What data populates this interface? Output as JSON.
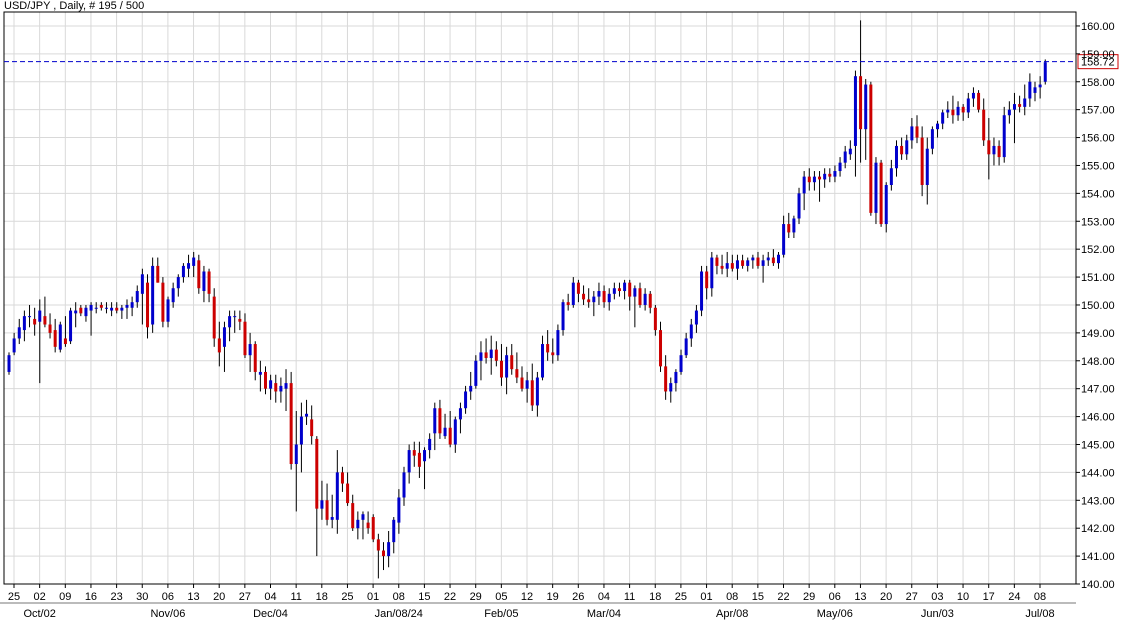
{
  "chart_data": {
    "type": "candlestick",
    "title": "USD/JPY , Daily, # 195 / 500",
    "instrument": "USD/JPY",
    "timeframe": "Daily",
    "ylim": [
      140.0,
      160.5
    ],
    "grid": true,
    "yticks": [
      "140.00",
      "141.00",
      "142.00",
      "143.00",
      "144.00",
      "145.00",
      "146.00",
      "147.00",
      "148.00",
      "149.00",
      "150.00",
      "151.00",
      "152.00",
      "153.00",
      "154.00",
      "155.00",
      "156.00",
      "157.00",
      "158.00",
      "159.00",
      "160.00"
    ],
    "xticks_day": [
      "25",
      "02",
      "09",
      "16",
      "23",
      "30",
      "06",
      "13",
      "20",
      "27",
      "04",
      "11",
      "18",
      "25",
      "01",
      "08",
      "15",
      "22",
      "29",
      "05",
      "12",
      "19",
      "26",
      "04",
      "11",
      "18",
      "25",
      "01",
      "08",
      "15",
      "22",
      "29",
      "06",
      "13",
      "20",
      "27",
      "03",
      "10",
      "17",
      "24",
      "08"
    ],
    "xticks_month": [
      {
        "label": "Oct/02",
        "at_tick": 1
      },
      {
        "label": "Nov/06",
        "at_tick": 6
      },
      {
        "label": "Dec/04",
        "at_tick": 10
      },
      {
        "label": "Jan/08/24",
        "at_tick": 15
      },
      {
        "label": "Feb/05",
        "at_tick": 19
      },
      {
        "label": "Mar/04",
        "at_tick": 23
      },
      {
        "label": "Apr/08",
        "at_tick": 28
      },
      {
        "label": "May/06",
        "at_tick": 32
      },
      {
        "label": "Jun/03",
        "at_tick": 36
      },
      {
        "label": "Jul/08",
        "at_tick": 40
      }
    ],
    "last_price": "158.72",
    "last_price_value": 158.72,
    "colors": {
      "up": "#0000cc",
      "down": "#cc0000",
      "wick": "#000000",
      "grid": "#d9d9d9",
      "price_line": "#0000cc",
      "price_box_border": "#cc0000",
      "background": "#ffffff",
      "separator": "#777777"
    },
    "candles": [
      [
        147.6,
        148.3,
        147.5,
        148.2
      ],
      [
        148.3,
        149.0,
        148.2,
        148.8
      ],
      [
        148.8,
        149.5,
        148.6,
        149.2
      ],
      [
        149.1,
        149.8,
        148.7,
        149.6
      ],
      [
        149.6,
        150.0,
        149.2,
        149.6
      ],
      [
        149.5,
        149.9,
        148.9,
        149.3
      ],
      [
        149.4,
        150.2,
        147.2,
        149.8
      ],
      [
        149.6,
        150.3,
        149.2,
        149.3
      ],
      [
        149.3,
        149.7,
        148.8,
        149.0
      ],
      [
        149.1,
        149.5,
        148.3,
        148.5
      ],
      [
        148.4,
        149.4,
        148.3,
        149.3
      ],
      [
        148.8,
        149.6,
        148.5,
        148.6
      ],
      [
        148.7,
        149.9,
        148.6,
        149.8
      ],
      [
        149.7,
        150.1,
        149.2,
        149.8
      ],
      [
        149.9,
        150.0,
        149.6,
        149.7
      ],
      [
        149.6,
        150.0,
        149.4,
        149.9
      ],
      [
        149.8,
        150.1,
        148.9,
        150.0
      ],
      [
        149.9,
        150.1,
        149.7,
        149.9
      ],
      [
        150.0,
        150.1,
        149.8,
        149.9
      ],
      [
        149.9,
        150.1,
        149.7,
        149.9
      ],
      [
        149.8,
        150.1,
        149.6,
        149.9
      ],
      [
        149.9,
        150.1,
        149.7,
        149.8
      ],
      [
        149.8,
        150.0,
        149.5,
        149.9
      ],
      [
        149.9,
        150.2,
        149.5,
        150.0
      ],
      [
        149.9,
        150.3,
        149.6,
        150.1
      ],
      [
        150.1,
        150.7,
        149.9,
        150.5
      ],
      [
        150.4,
        151.3,
        149.3,
        151.1
      ],
      [
        150.8,
        151.1,
        148.8,
        149.2
      ],
      [
        149.3,
        151.7,
        149.0,
        151.4
      ],
      [
        151.4,
        151.7,
        150.8,
        150.8
      ],
      [
        150.8,
        151.0,
        149.2,
        149.4
      ],
      [
        149.4,
        150.3,
        149.2,
        150.2
      ],
      [
        150.1,
        150.8,
        149.9,
        150.6
      ],
      [
        150.6,
        151.1,
        150.3,
        151.0
      ],
      [
        151.0,
        151.5,
        150.8,
        151.4
      ],
      [
        151.3,
        151.8,
        151.0,
        151.5
      ],
      [
        151.4,
        151.9,
        151.0,
        151.7
      ],
      [
        151.6,
        151.8,
        150.4,
        150.6
      ],
      [
        150.5,
        151.4,
        150.1,
        151.2
      ],
      [
        151.2,
        151.3,
        150.1,
        150.4
      ],
      [
        150.3,
        150.6,
        148.5,
        148.8
      ],
      [
        148.8,
        149.4,
        147.8,
        148.3
      ],
      [
        148.5,
        149.4,
        147.6,
        149.2
      ],
      [
        149.2,
        149.8,
        148.7,
        149.6
      ],
      [
        149.6,
        149.8,
        149.0,
        149.6
      ],
      [
        149.5,
        149.8,
        149.1,
        149.4
      ],
      [
        149.4,
        149.7,
        148.1,
        148.2
      ],
      [
        148.2,
        149.0,
        147.6,
        148.6
      ],
      [
        148.6,
        148.7,
        147.3,
        147.6
      ],
      [
        147.5,
        148.0,
        146.9,
        147.6
      ],
      [
        147.6,
        147.8,
        146.8,
        147.0
      ],
      [
        147.0,
        147.5,
        146.6,
        147.3
      ],
      [
        147.2,
        147.5,
        146.5,
        146.9
      ],
      [
        146.9,
        147.4,
        146.5,
        147.1
      ],
      [
        147.0,
        147.7,
        146.2,
        147.2
      ],
      [
        147.2,
        147.6,
        144.1,
        144.3
      ],
      [
        144.3,
        146.2,
        142.6,
        145.0
      ],
      [
        145.0,
        146.5,
        144.0,
        146.0
      ],
      [
        146.0,
        146.6,
        145.7,
        146.1
      ],
      [
        145.9,
        146.4,
        145.0,
        145.3
      ],
      [
        145.2,
        145.3,
        141.0,
        142.7
      ],
      [
        142.7,
        143.7,
        142.3,
        143.0
      ],
      [
        143.0,
        143.6,
        142.1,
        142.3
      ],
      [
        142.3,
        143.2,
        142.0,
        142.4
      ],
      [
        142.3,
        144.8,
        141.8,
        144.0
      ],
      [
        144.0,
        144.2,
        143.3,
        143.6
      ],
      [
        143.6,
        144.0,
        142.8,
        142.9
      ],
      [
        142.9,
        143.2,
        141.9,
        142.0
      ],
      [
        142.0,
        142.6,
        141.6,
        142.3
      ],
      [
        142.3,
        142.6,
        141.6,
        142.5
      ],
      [
        142.2,
        142.6,
        141.8,
        142.0
      ],
      [
        142.4,
        142.5,
        141.5,
        141.6
      ],
      [
        141.6,
        141.8,
        140.2,
        141.2
      ],
      [
        141.2,
        141.5,
        140.5,
        141.0
      ],
      [
        141.0,
        141.9,
        140.6,
        141.5
      ],
      [
        141.5,
        142.4,
        141.1,
        142.3
      ],
      [
        142.2,
        143.4,
        141.8,
        143.1
      ],
      [
        143.1,
        144.2,
        142.8,
        144.0
      ],
      [
        144.0,
        145.0,
        143.6,
        144.8
      ],
      [
        144.8,
        145.1,
        144.2,
        144.6
      ],
      [
        144.7,
        145.1,
        143.8,
        144.2
      ],
      [
        144.4,
        144.9,
        143.4,
        144.8
      ],
      [
        144.8,
        145.4,
        144.5,
        145.2
      ],
      [
        145.4,
        146.5,
        144.8,
        146.3
      ],
      [
        146.3,
        146.6,
        145.2,
        145.4
      ],
      [
        145.3,
        146.1,
        145.2,
        145.6
      ],
      [
        145.6,
        146.2,
        144.9,
        145.0
      ],
      [
        145.0,
        146.0,
        144.7,
        145.9
      ],
      [
        145.9,
        146.5,
        145.4,
        146.3
      ],
      [
        146.3,
        147.1,
        146.1,
        146.9
      ],
      [
        146.9,
        147.6,
        146.6,
        147.1
      ],
      [
        147.1,
        148.2,
        147.0,
        148.0
      ],
      [
        148.0,
        148.7,
        147.3,
        148.3
      ],
      [
        148.3,
        148.8,
        147.9,
        148.1
      ],
      [
        148.1,
        148.9,
        147.5,
        148.4
      ],
      [
        148.4,
        148.7,
        147.8,
        148.0
      ],
      [
        148.0,
        148.6,
        147.1,
        147.4
      ],
      [
        147.4,
        148.5,
        146.8,
        148.2
      ],
      [
        148.2,
        148.6,
        147.5,
        147.7
      ],
      [
        147.7,
        148.3,
        147.2,
        147.4
      ],
      [
        147.4,
        147.8,
        146.9,
        147.0
      ],
      [
        147.0,
        147.6,
        146.5,
        147.3
      ],
      [
        147.3,
        147.9,
        146.2,
        146.4
      ],
      [
        146.4,
        147.6,
        146.0,
        147.4
      ],
      [
        147.4,
        148.9,
        147.3,
        148.6
      ],
      [
        148.6,
        149.1,
        148.0,
        148.3
      ],
      [
        148.3,
        148.8,
        147.9,
        148.2
      ],
      [
        148.2,
        149.3,
        148.0,
        149.1
      ],
      [
        149.1,
        150.2,
        148.9,
        150.1
      ],
      [
        150.1,
        150.4,
        149.8,
        150.0
      ],
      [
        150.0,
        151.0,
        149.9,
        150.8
      ],
      [
        150.8,
        150.9,
        150.1,
        150.4
      ],
      [
        150.4,
        150.7,
        150.0,
        150.2
      ],
      [
        150.2,
        150.6,
        149.9,
        150.1
      ],
      [
        150.1,
        150.5,
        149.6,
        150.3
      ],
      [
        150.3,
        150.8,
        150.0,
        150.5
      ],
      [
        150.5,
        150.7,
        149.9,
        150.1
      ],
      [
        150.1,
        150.6,
        149.8,
        150.4
      ],
      [
        150.4,
        150.8,
        150.2,
        150.6
      ],
      [
        150.6,
        150.8,
        150.3,
        150.5
      ],
      [
        150.5,
        150.9,
        150.2,
        150.8
      ],
      [
        150.8,
        150.9,
        149.8,
        150.3
      ],
      [
        150.3,
        150.7,
        149.2,
        150.6
      ],
      [
        150.6,
        150.8,
        149.9,
        150.0
      ],
      [
        150.0,
        150.6,
        149.8,
        150.4
      ],
      [
        150.4,
        150.5,
        149.7,
        149.9
      ],
      [
        149.9,
        150.0,
        148.9,
        149.1
      ],
      [
        149.1,
        149.4,
        147.6,
        147.8
      ],
      [
        147.8,
        148.2,
        146.6,
        146.9
      ],
      [
        146.9,
        147.4,
        146.5,
        147.2
      ],
      [
        147.2,
        147.7,
        146.9,
        147.6
      ],
      [
        147.6,
        148.4,
        147.5,
        148.2
      ],
      [
        148.2,
        149.0,
        148.1,
        148.8
      ],
      [
        148.8,
        149.5,
        148.5,
        149.3
      ],
      [
        149.3,
        150.0,
        149.0,
        149.8
      ],
      [
        149.8,
        151.4,
        149.6,
        151.2
      ],
      [
        151.2,
        151.4,
        150.2,
        150.6
      ],
      [
        150.6,
        151.9,
        150.3,
        151.7
      ],
      [
        151.7,
        151.8,
        151.1,
        151.4
      ],
      [
        151.4,
        151.8,
        151.1,
        151.3
      ],
      [
        151.3,
        151.9,
        151.0,
        151.5
      ],
      [
        151.5,
        151.8,
        151.2,
        151.3
      ],
      [
        151.3,
        151.8,
        150.9,
        151.6
      ],
      [
        151.6,
        151.8,
        151.3,
        151.4
      ],
      [
        151.4,
        151.7,
        151.2,
        151.6
      ],
      [
        151.6,
        151.8,
        151.3,
        151.7
      ],
      [
        151.7,
        151.9,
        151.3,
        151.4
      ],
      [
        151.4,
        151.8,
        150.8,
        151.6
      ],
      [
        151.6,
        151.9,
        151.4,
        151.7
      ],
      [
        151.7,
        152.0,
        151.4,
        151.5
      ],
      [
        151.5,
        151.9,
        151.3,
        151.8
      ],
      [
        151.8,
        153.2,
        151.7,
        152.9
      ],
      [
        152.9,
        153.3,
        152.4,
        152.6
      ],
      [
        152.6,
        153.2,
        152.4,
        153.1
      ],
      [
        153.1,
        154.2,
        152.9,
        154.0
      ],
      [
        154.0,
        154.8,
        153.4,
        154.6
      ],
      [
        154.6,
        154.9,
        154.1,
        154.4
      ],
      [
        154.4,
        154.8,
        154.1,
        154.6
      ],
      [
        154.6,
        154.8,
        153.7,
        154.5
      ],
      [
        154.5,
        154.9,
        154.2,
        154.7
      ],
      [
        154.7,
        154.9,
        154.4,
        154.6
      ],
      [
        154.6,
        155.0,
        154.4,
        154.8
      ],
      [
        154.8,
        155.3,
        154.6,
        155.1
      ],
      [
        155.1,
        155.7,
        154.9,
        155.5
      ],
      [
        155.4,
        155.9,
        155.2,
        155.6
      ],
      [
        155.7,
        158.4,
        154.6,
        158.2
      ],
      [
        158.2,
        160.2,
        155.1,
        156.3
      ],
      [
        156.3,
        158.1,
        155.2,
        157.9
      ],
      [
        157.9,
        158.0,
        153.2,
        153.3
      ],
      [
        153.3,
        155.3,
        152.9,
        155.1
      ],
      [
        155.1,
        155.2,
        152.8,
        152.9
      ],
      [
        152.9,
        154.4,
        152.6,
        154.3
      ],
      [
        154.3,
        155.2,
        154.1,
        154.9
      ],
      [
        154.9,
        155.9,
        154.6,
        155.7
      ],
      [
        155.7,
        156.0,
        155.2,
        155.4
      ],
      [
        155.4,
        156.1,
        155.2,
        155.9
      ],
      [
        155.9,
        156.7,
        155.6,
        156.4
      ],
      [
        156.4,
        156.8,
        155.8,
        156.0
      ],
      [
        156.0,
        156.4,
        153.9,
        154.3
      ],
      [
        154.3,
        156.0,
        153.6,
        155.6
      ],
      [
        155.6,
        156.4,
        155.4,
        156.3
      ],
      [
        156.3,
        156.6,
        156.0,
        156.5
      ],
      [
        156.5,
        157.0,
        156.3,
        156.9
      ],
      [
        156.9,
        157.3,
        156.7,
        157.0
      ],
      [
        157.0,
        157.5,
        156.5,
        156.8
      ],
      [
        156.8,
        157.3,
        156.6,
        157.1
      ],
      [
        157.1,
        157.2,
        156.6,
        156.9
      ],
      [
        156.9,
        157.6,
        156.7,
        157.4
      ],
      [
        157.4,
        157.8,
        157.1,
        157.6
      ],
      [
        157.6,
        157.7,
        156.9,
        157.0
      ],
      [
        157.0,
        157.4,
        155.7,
        155.9
      ],
      [
        155.9,
        156.7,
        154.5,
        155.4
      ],
      [
        155.4,
        156.0,
        155.0,
        155.7
      ],
      [
        155.7,
        155.9,
        155.0,
        155.3
      ],
      [
        155.3,
        157.1,
        155.1,
        156.8
      ],
      [
        156.8,
        157.3,
        156.5,
        157.0
      ],
      [
        157.0,
        157.6,
        155.8,
        157.2
      ],
      [
        157.2,
        157.5,
        156.9,
        157.1
      ],
      [
        157.1,
        157.9,
        156.8,
        157.4
      ],
      [
        157.4,
        158.3,
        157.1,
        158.0
      ],
      [
        157.6,
        158.0,
        157.3,
        157.8
      ],
      [
        157.8,
        158.2,
        157.4,
        157.9
      ],
      [
        158.0,
        158.8,
        157.9,
        158.7
      ]
    ]
  }
}
